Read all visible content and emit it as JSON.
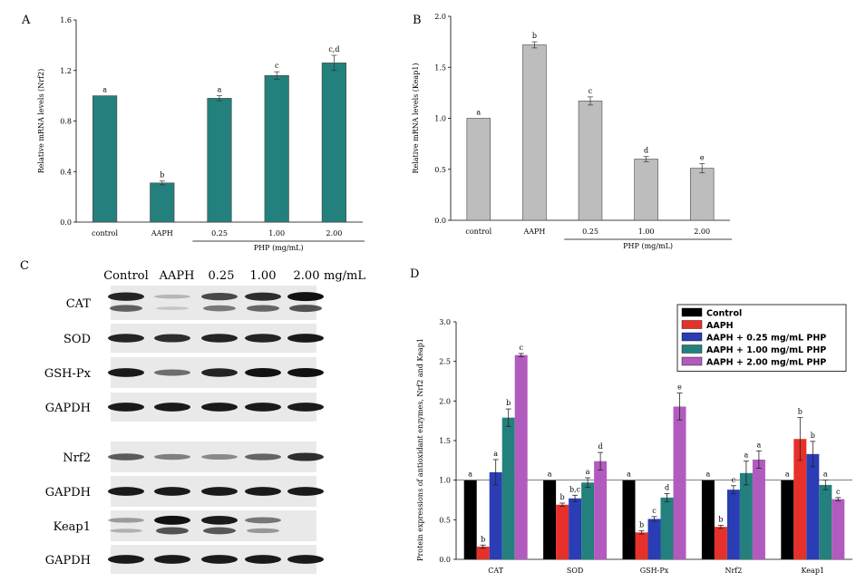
{
  "panel_letters": [
    "A",
    "B",
    "C",
    "D"
  ],
  "chart_data": [
    {
      "panel": "A",
      "type": "bar",
      "categories": [
        "control",
        "AAPH",
        "0.25",
        "1.00",
        "2.00"
      ],
      "values": [
        1.0,
        0.31,
        0.98,
        1.16,
        1.26
      ],
      "errors": [
        0.0,
        0.015,
        0.02,
        0.03,
        0.06
      ],
      "sig_letters": [
        "a",
        "b",
        "a",
        "c",
        "c,d"
      ],
      "ylabel": "Relative mRNA levels (Nrf2)",
      "group_label": "PHP (mg/mL)",
      "ylim": [
        0,
        1.6
      ],
      "yticks": [
        0.0,
        0.4,
        0.8,
        1.2,
        1.6
      ],
      "ytick_labels": [
        "0.0",
        "0.4",
        "0.8",
        "1.2",
        "1.6"
      ],
      "bar_color": "#24807d"
    },
    {
      "panel": "B",
      "type": "bar",
      "categories": [
        "control",
        "AAPH",
        "0.25",
        "1.00",
        "2.00"
      ],
      "values": [
        1.0,
        1.72,
        1.17,
        0.6,
        0.51
      ],
      "errors": [
        0.0,
        0.03,
        0.04,
        0.025,
        0.045
      ],
      "sig_letters": [
        "a",
        "b",
        "c",
        "d",
        "e"
      ],
      "ylabel": "Relative mRNA levels (Keap1)",
      "group_label": "PHP (mg/mL)",
      "ylim": [
        0,
        2.0
      ],
      "yticks": [
        0.0,
        0.5,
        1.0,
        1.5,
        2.0
      ],
      "ytick_labels": [
        "0.0",
        "0.5",
        "1.0",
        "1.5",
        "2.0"
      ],
      "bar_color": "#bdbdbd"
    },
    {
      "panel": "D",
      "type": "bar",
      "categories": [
        "CAT",
        "SOD",
        "GSH-Px",
        "Nrf2",
        "Keap1"
      ],
      "series": [
        {
          "name": "Control",
          "color": "#000000",
          "values": [
            1.0,
            1.0,
            1.0,
            1.0,
            1.0
          ],
          "errors": [
            0,
            0,
            0,
            0,
            0
          ],
          "sig": [
            "a",
            "a",
            "a",
            "a",
            "a"
          ]
        },
        {
          "name": "AAPH",
          "color": "#e8302a",
          "values": [
            0.16,
            0.69,
            0.34,
            0.41,
            1.52
          ],
          "errors": [
            0.02,
            0.02,
            0.02,
            0.02,
            0.27
          ],
          "sig": [
            "b",
            "b",
            "b",
            "b",
            "b"
          ]
        },
        {
          "name": "AAPH + 0.25 mg/mL PHP",
          "color": "#2b3db5",
          "values": [
            1.1,
            0.77,
            0.51,
            0.88,
            1.33
          ],
          "errors": [
            0.16,
            0.04,
            0.03,
            0.05,
            0.16
          ],
          "sig": [
            "a",
            "b,c",
            "c",
            "c",
            "b"
          ]
        },
        {
          "name": "AAPH + 1.00 mg/mL PHP",
          "color": "#24807d",
          "values": [
            1.79,
            0.97,
            0.78,
            1.09,
            0.94
          ],
          "errors": [
            0.11,
            0.06,
            0.05,
            0.15,
            0.06
          ],
          "sig": [
            "b",
            "a",
            "d",
            "a",
            "a"
          ]
        },
        {
          "name": "AAPH + 2.00 mg/mL PHP",
          "color": "#b25bbf",
          "values": [
            2.58,
            1.24,
            1.93,
            1.26,
            0.76
          ],
          "errors": [
            0.02,
            0.11,
            0.17,
            0.11,
            0.02
          ],
          "sig": [
            "c",
            "d",
            "e",
            "a",
            "c"
          ]
        }
      ],
      "ylabel": "Protein expressions of antioxidant enzymes, Nrf2 and Keap1",
      "ylim": [
        0,
        3.0
      ],
      "yticks": [
        0.0,
        0.5,
        1.0,
        1.5,
        2.0,
        2.5,
        3.0
      ],
      "ytick_labels": [
        "0.0",
        "0.5",
        "1.0",
        "1.5",
        "2.0",
        "2.5",
        "3.0"
      ],
      "reference_line": 1.0,
      "legend_position": "top-right"
    }
  ],
  "western_blot": {
    "column_headers": [
      "Control",
      "AAPH",
      "0.25",
      "1.00",
      "2.00",
      "mg/mL"
    ],
    "rows": [
      {
        "label": "CAT",
        "intensity": [
          0.9,
          0.1,
          0.7,
          0.85,
          1.0
        ],
        "double": true
      },
      {
        "label": "SOD",
        "intensity": [
          0.9,
          0.85,
          0.9,
          0.9,
          0.95
        ],
        "double": false
      },
      {
        "label": "GSH-Px",
        "intensity": [
          0.95,
          0.5,
          0.9,
          1.0,
          1.0
        ],
        "double": false
      },
      {
        "label": "GAPDH",
        "intensity": [
          0.95,
          0.95,
          0.95,
          0.95,
          0.95
        ],
        "double": false
      },
      {
        "label": "Nrf2",
        "intensity": [
          0.6,
          0.4,
          0.35,
          0.55,
          0.85
        ],
        "double": false
      },
      {
        "label": "GAPDH",
        "intensity": [
          0.95,
          0.95,
          0.95,
          0.95,
          0.95
        ],
        "double": false
      },
      {
        "label": "Keap1",
        "intensity": [
          0.25,
          1.0,
          0.95,
          0.45,
          0.0
        ],
        "double": true
      },
      {
        "label": "GAPDH",
        "intensity": [
          0.95,
          0.95,
          0.95,
          0.95,
          0.95
        ],
        "double": false
      }
    ]
  }
}
